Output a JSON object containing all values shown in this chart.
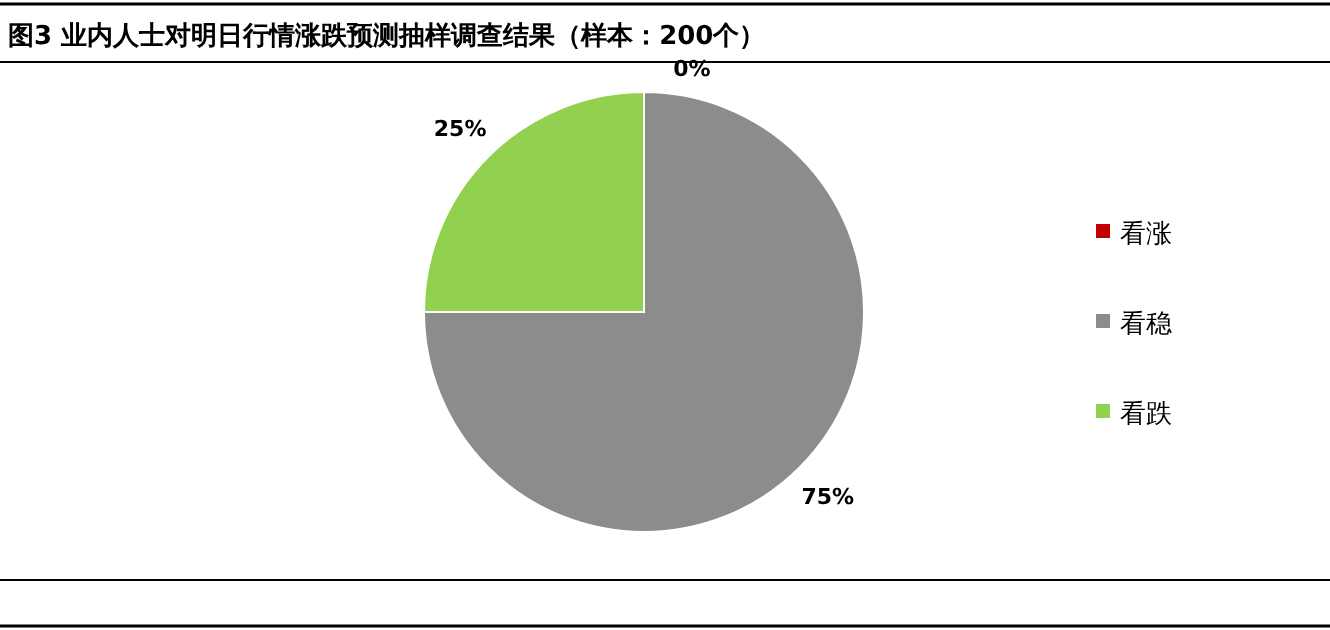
{
  "chart_data": {
    "type": "pie",
    "title": "图3 业内人士对明日行情涨跌预测抽样调查结果（样本：200个）",
    "categories": [
      "看涨",
      "看稳",
      "看跌"
    ],
    "values": [
      0,
      75,
      25
    ],
    "colors": [
      "#c00000",
      "#8c8c8c",
      "#92d050"
    ],
    "value_labels": [
      "0%",
      "75%",
      "25%"
    ],
    "legend": "right"
  }
}
